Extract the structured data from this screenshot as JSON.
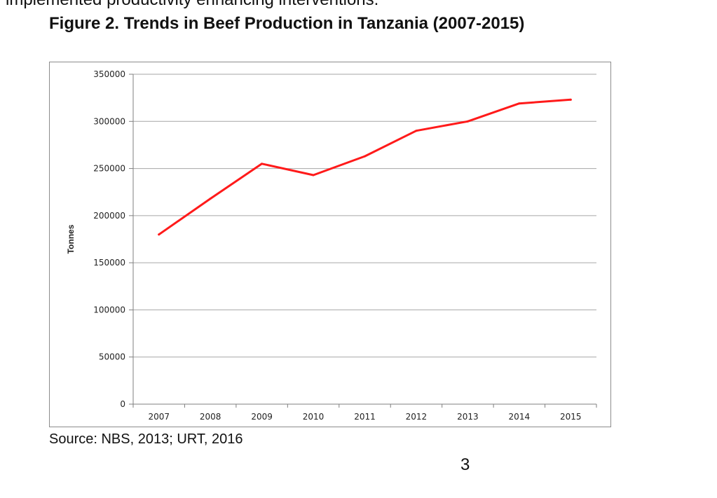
{
  "document": {
    "top_cut_text": "implemented productivity enhancing interventions.",
    "figure_title": "Figure 2. Trends in Beef Production in Tanzania (2007-2015)",
    "source": "Source: NBS, 2013; URT, 2016",
    "page_number": "3"
  },
  "chart_data": {
    "type": "line",
    "title": "",
    "xlabel": "",
    "ylabel": "Tonnes",
    "categories": [
      "2007",
      "2008",
      "2009",
      "2010",
      "2011",
      "2012",
      "2013",
      "2014",
      "2015"
    ],
    "series": [
      {
        "values": [
          180000,
          218000,
          255000,
          243000,
          263000,
          290000,
          300000,
          319000,
          323000
        ],
        "color": "#ff1a1a"
      }
    ],
    "ylim": [
      0,
      350000
    ],
    "yticks": [
      "0",
      "50000",
      "100000",
      "150000",
      "200000",
      "250000",
      "300000",
      "350000"
    ],
    "grid": true,
    "legend": "none"
  }
}
